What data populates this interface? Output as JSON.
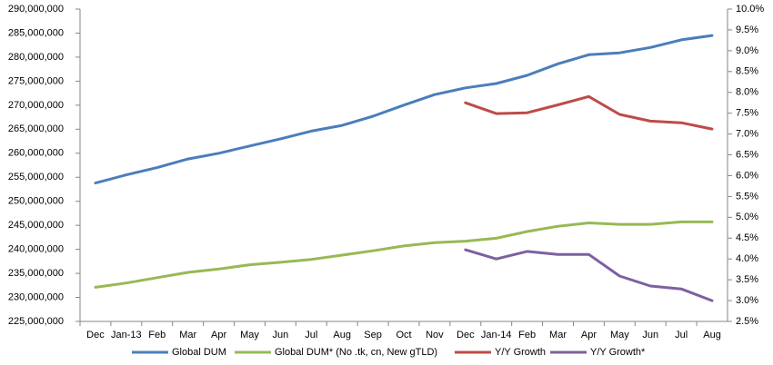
{
  "chart_data": {
    "type": "line",
    "categories": [
      "Dec",
      "Jan-13",
      "Feb",
      "Mar",
      "Apr",
      "May",
      "Jun",
      "Jul",
      "Aug",
      "Sep",
      "Oct",
      "Nov",
      "Dec",
      "Jan-14",
      "Feb",
      "Mar",
      "Apr",
      "May",
      "Jun",
      "Jul",
      "Aug"
    ],
    "series": [
      {
        "name": "Global DUM",
        "color": "#4a7ebb",
        "values": [
          253800000,
          255500000,
          257000000,
          258800000,
          260000000,
          261500000,
          263000000,
          264600000,
          265800000,
          267700000,
          270000000,
          272200000,
          273600000,
          274500000,
          276200000,
          278600000,
          280500000,
          280900000,
          282000000,
          283600000,
          284500000
        ]
      },
      {
        "name": "Global DUM* (No .tk, cn, New gTLD)",
        "color": "#98b954",
        "values": [
          232100000,
          233000000,
          234100000,
          235200000,
          235900000,
          236800000,
          237300000,
          237900000,
          238800000,
          239700000,
          240700000,
          241400000,
          241700000,
          242300000,
          243700000,
          244800000,
          245500000,
          245200000,
          245200000,
          245700000,
          245700000
        ]
      },
      {
        "name": "Y/Y Growth",
        "color": "#be4b48",
        "axis": "y2",
        "values": [
          null,
          null,
          null,
          null,
          null,
          null,
          null,
          null,
          null,
          null,
          null,
          null,
          7.75,
          7.49,
          7.51,
          7.7,
          7.9,
          7.47,
          7.31,
          7.27,
          7.12
        ]
      },
      {
        "name": "Y/Y Growth*",
        "color": "#7d60a0",
        "axis": "y2",
        "values": [
          null,
          null,
          null,
          null,
          null,
          null,
          null,
          null,
          null,
          null,
          null,
          null,
          4.22,
          4.0,
          4.18,
          4.11,
          4.11,
          3.59,
          3.35,
          3.28,
          3.0
        ]
      }
    ],
    "ylim": [
      225000000,
      290000000
    ],
    "yticks": [
      {
        "value": 225000000,
        "label": "225,000,000"
      },
      {
        "value": 230000000,
        "label": "230,000,000"
      },
      {
        "value": 235000000,
        "label": "235,000,000"
      },
      {
        "value": 240000000,
        "label": "240,000,000"
      },
      {
        "value": 245000000,
        "label": "245,000,000"
      },
      {
        "value": 250000000,
        "label": "250,000,000"
      },
      {
        "value": 255000000,
        "label": "255,000,000"
      },
      {
        "value": 260000000,
        "label": "260,000,000"
      },
      {
        "value": 265000000,
        "label": "265,000,000"
      },
      {
        "value": 270000000,
        "label": "270,000,000"
      },
      {
        "value": 275000000,
        "label": "275,000,000"
      },
      {
        "value": 280000000,
        "label": "280,000,000"
      },
      {
        "value": 285000000,
        "label": "285,000,000"
      },
      {
        "value": 290000000,
        "label": "290,000,000"
      }
    ],
    "y2lim": [
      2.5,
      10
    ],
    "y2ticks": [
      {
        "value": 2.5,
        "label": "2.5%"
      },
      {
        "value": 3,
        "label": "3.0%"
      },
      {
        "value": 3.5,
        "label": "3.5%"
      },
      {
        "value": 4,
        "label": "4.0%"
      },
      {
        "value": 4.5,
        "label": "4.5%"
      },
      {
        "value": 5,
        "label": "5.0%"
      },
      {
        "value": 5.5,
        "label": "5.5%"
      },
      {
        "value": 6,
        "label": "6.0%"
      },
      {
        "value": 6.5,
        "label": "6.5%"
      },
      {
        "value": 7,
        "label": "7.0%"
      },
      {
        "value": 7.5,
        "label": "7.5%"
      },
      {
        "value": 8,
        "label": "8.0%"
      },
      {
        "value": 8.5,
        "label": "8.5%"
      },
      {
        "value": 9,
        "label": "9.0%"
      },
      {
        "value": 9.5,
        "label": "9.5%"
      },
      {
        "value": 10,
        "label": "10.0%"
      }
    ],
    "legend": "bottom"
  }
}
